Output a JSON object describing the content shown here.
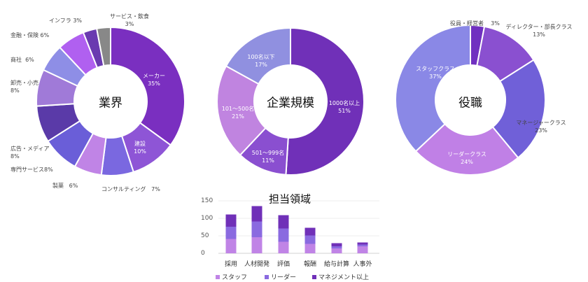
{
  "chart_data": [
    {
      "type": "pie",
      "title": "業界",
      "donut": true,
      "slices": [
        {
          "label": "メーカー",
          "value": 35,
          "pct": "35%",
          "color": "#7a2fc0"
        },
        {
          "label": "建設",
          "value": 10,
          "pct": "10%",
          "color": "#8e55d6"
        },
        {
          "label": "コンサルティング",
          "value": 7,
          "pct": "7%",
          "color": "#7a68e0"
        },
        {
          "label": "製薬",
          "value": 6,
          "pct": "6%",
          "color": "#c084e6"
        },
        {
          "label": "専門サービス",
          "value": 8,
          "pct": "8%",
          "color": "#6a5ed8"
        },
        {
          "label": "広告・メディア",
          "value": 8,
          "pct": "8%",
          "color": "#5a3aa8"
        },
        {
          "label": "卸売・小売",
          "value": 8,
          "pct": "8%",
          "color": "#a07ad8"
        },
        {
          "label": "商社",
          "value": 6,
          "pct": "6%",
          "color": "#8e8ee6"
        },
        {
          "label": "金融・保険",
          "value": 6,
          "pct": "6%",
          "color": "#b060f0"
        },
        {
          "label": "インフラ",
          "value": 3,
          "pct": "3%",
          "color": "#6a3ab0"
        },
        {
          "label": "サービス・飲食",
          "value": 3,
          "pct": "3%",
          "color": "#888888"
        }
      ]
    },
    {
      "type": "pie",
      "title": "企業規模",
      "donut": true,
      "slices": [
        {
          "label": "1000名以上",
          "value": 51,
          "pct": "51%",
          "color": "#7030b8"
        },
        {
          "label": "501～999名",
          "value": 11,
          "pct": "11%",
          "color": "#8a4fd0"
        },
        {
          "label": "101～500名",
          "value": 21,
          "pct": "21%",
          "color": "#c084e0"
        },
        {
          "label": "100名以下",
          "value": 17,
          "pct": "17%",
          "color": "#9090e0"
        }
      ]
    },
    {
      "type": "pie",
      "title": "役職",
      "donut": true,
      "slices": [
        {
          "label": "役員・経営者",
          "value": 3,
          "pct": "3%",
          "color": "#7030c0"
        },
        {
          "label": "ディレクター・部長クラス",
          "value": 13,
          "pct": "13%",
          "color": "#8a50d0"
        },
        {
          "label": "マネージャークラス",
          "value": 23,
          "pct": "23%",
          "color": "#7060d8"
        },
        {
          "label": "リーダークラス",
          "value": 24,
          "pct": "24%",
          "color": "#c080e6"
        },
        {
          "label": "スタッフクラス",
          "value": 37,
          "pct": "37%",
          "color": "#8a88e6"
        }
      ]
    },
    {
      "type": "bar",
      "stacked": true,
      "title": "担当領域",
      "categories": [
        "採用",
        "人材開発",
        "評価",
        "報酬",
        "給与計算",
        "人事外"
      ],
      "ylim": [
        0,
        150
      ],
      "yticks": [
        "0",
        "50",
        "100",
        "150"
      ],
      "grid": true,
      "legend": "bottom",
      "series": [
        {
          "name": "スタッフ",
          "color": "#c084e6",
          "values": [
            41,
            46,
            33,
            27,
            14,
            20
          ]
        },
        {
          "name": "リーダー",
          "color": "#8a6ae0",
          "values": [
            35,
            45,
            38,
            24,
            6,
            5
          ]
        },
        {
          "name": "マネジメント以上",
          "color": "#7030b8",
          "values": [
            35,
            44,
            38,
            22,
            9,
            6
          ]
        }
      ]
    }
  ]
}
